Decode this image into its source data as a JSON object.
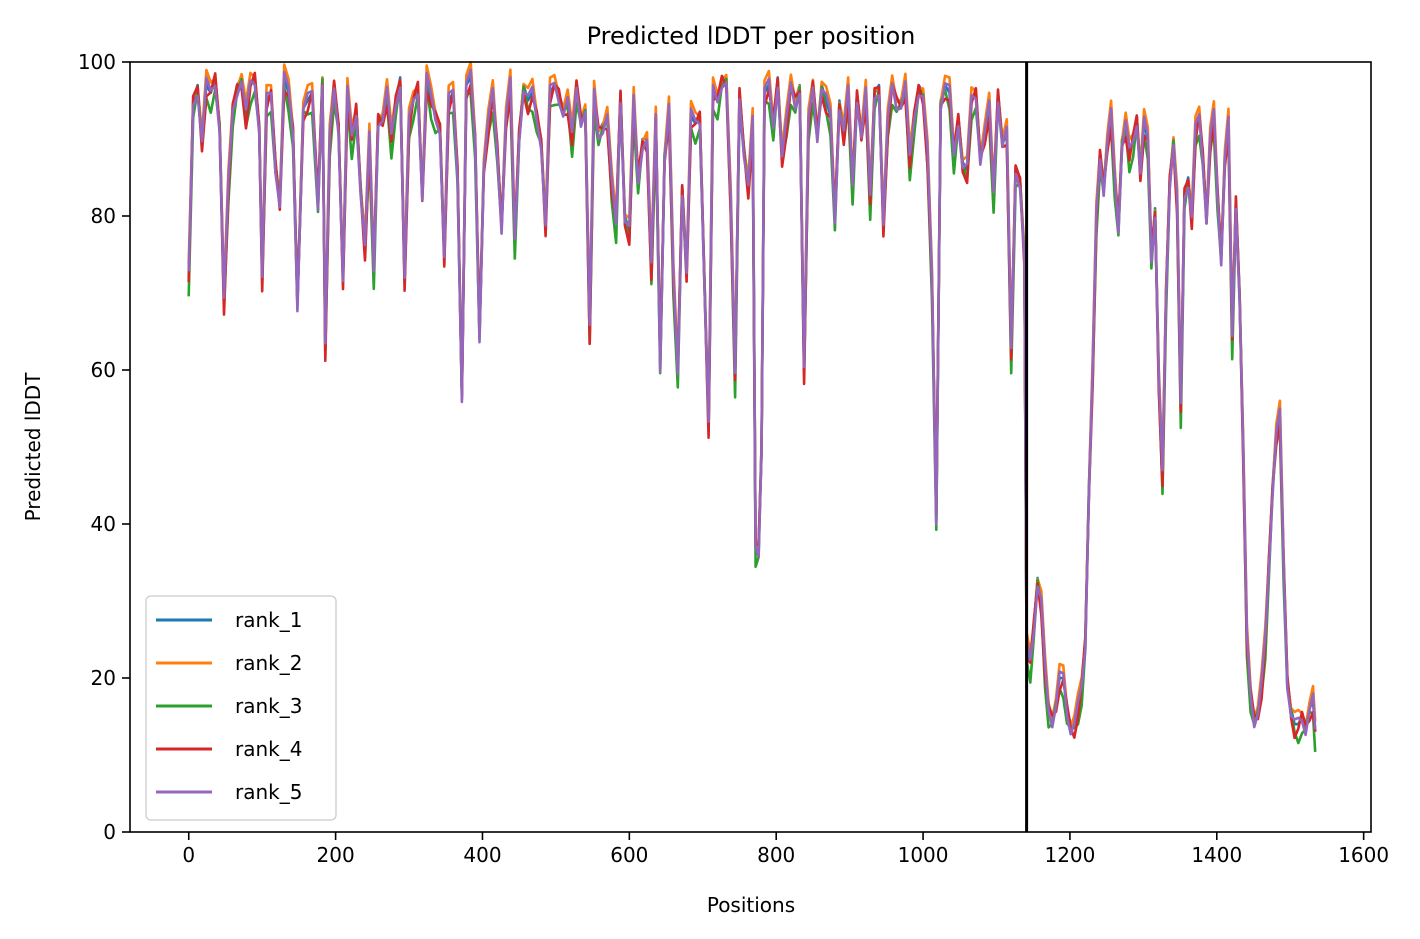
{
  "chart_data": {
    "type": "line",
    "title": "Predicted lDDT per position",
    "xlabel": "Positions",
    "ylabel": "Predicted lDDT",
    "xlim": [
      -80,
      1610
    ],
    "ylim": [
      0,
      100
    ],
    "xticks": [
      0,
      200,
      400,
      600,
      800,
      1000,
      1200,
      1400,
      1600
    ],
    "yticks": [
      0,
      20,
      40,
      60,
      80,
      100
    ],
    "grid": false,
    "legend_position": "lower-left",
    "vline": {
      "x": 1141,
      "color": "#000000"
    },
    "series": [
      {
        "name": "rank_1",
        "color": "#1f77b4",
        "offset": 0.0,
        "points": [
          [
            0,
            72
          ],
          [
            6,
            95
          ],
          [
            12,
            97
          ],
          [
            18,
            90
          ],
          [
            24,
            97
          ],
          [
            30,
            96
          ],
          [
            36,
            98
          ],
          [
            42,
            92
          ],
          [
            48,
            69
          ],
          [
            54,
            84
          ],
          [
            60,
            94
          ],
          [
            66,
            97
          ],
          [
            72,
            98
          ],
          [
            78,
            93
          ],
          [
            84,
            97
          ],
          [
            90,
            98
          ],
          [
            96,
            92
          ],
          [
            100,
            72
          ],
          [
            106,
            95
          ],
          [
            112,
            96
          ],
          [
            118,
            87
          ],
          [
            124,
            82
          ],
          [
            130,
            98
          ],
          [
            136,
            96
          ],
          [
            142,
            91
          ],
          [
            148,
            69
          ],
          [
            156,
            94
          ],
          [
            162,
            95
          ],
          [
            168,
            96
          ],
          [
            176,
            82
          ],
          [
            182,
            98
          ],
          [
            186,
            63
          ],
          [
            192,
            90
          ],
          [
            198,
            97
          ],
          [
            204,
            92
          ],
          [
            210,
            72
          ],
          [
            216,
            96
          ],
          [
            222,
            90
          ],
          [
            228,
            94
          ],
          [
            234,
            84
          ],
          [
            240,
            76
          ],
          [
            246,
            90
          ],
          [
            252,
            73
          ],
          [
            258,
            93
          ],
          [
            264,
            93
          ],
          [
            270,
            96
          ],
          [
            276,
            90
          ],
          [
            282,
            95
          ],
          [
            288,
            98
          ],
          [
            294,
            72
          ],
          [
            300,
            92
          ],
          [
            306,
            95
          ],
          [
            312,
            97
          ],
          [
            318,
            83
          ],
          [
            324,
            98
          ],
          [
            330,
            95
          ],
          [
            336,
            93
          ],
          [
            342,
            92
          ],
          [
            348,
            75
          ],
          [
            354,
            95
          ],
          [
            360,
            96
          ],
          [
            366,
            86
          ],
          [
            372,
            57
          ],
          [
            378,
            97
          ],
          [
            384,
            98
          ],
          [
            390,
            90
          ],
          [
            396,
            65
          ],
          [
            402,
            87
          ],
          [
            408,
            92
          ],
          [
            414,
            96
          ],
          [
            420,
            89
          ],
          [
            426,
            79
          ],
          [
            432,
            93
          ],
          [
            438,
            97
          ],
          [
            444,
            77
          ],
          [
            450,
            91
          ],
          [
            456,
            97
          ],
          [
            462,
            95
          ],
          [
            468,
            96
          ],
          [
            474,
            93
          ],
          [
            480,
            90
          ],
          [
            486,
            79
          ],
          [
            492,
            96
          ],
          [
            498,
            97
          ],
          [
            504,
            96
          ],
          [
            510,
            94
          ],
          [
            516,
            95
          ],
          [
            522,
            90
          ],
          [
            528,
            97
          ],
          [
            534,
            93
          ],
          [
            540,
            94
          ],
          [
            546,
            65
          ],
          [
            552,
            96
          ],
          [
            558,
            91
          ],
          [
            564,
            92
          ],
          [
            570,
            93
          ],
          [
            576,
            84
          ],
          [
            582,
            79
          ],
          [
            588,
            96
          ],
          [
            594,
            80
          ],
          [
            600,
            78
          ],
          [
            606,
            95
          ],
          [
            612,
            85
          ],
          [
            618,
            90
          ],
          [
            624,
            90
          ],
          [
            630,
            73
          ],
          [
            636,
            93
          ],
          [
            642,
            61
          ],
          [
            648,
            88
          ],
          [
            654,
            94
          ],
          [
            660,
            72
          ],
          [
            666,
            60
          ],
          [
            672,
            84
          ],
          [
            678,
            73
          ],
          [
            684,
            93
          ],
          [
            690,
            92
          ],
          [
            696,
            93
          ],
          [
            702,
            73
          ],
          [
            708,
            53
          ],
          [
            714,
            96
          ],
          [
            720,
            95
          ],
          [
            726,
            98
          ],
          [
            732,
            98
          ],
          [
            738,
            82
          ],
          [
            744,
            59
          ],
          [
            750,
            96
          ],
          [
            756,
            89
          ],
          [
            762,
            84
          ],
          [
            768,
            92
          ],
          [
            772,
            37
          ],
          [
            776,
            37
          ],
          [
            780,
            50
          ],
          [
            784,
            96
          ],
          [
            790,
            97
          ],
          [
            796,
            92
          ],
          [
            802,
            98
          ],
          [
            808,
            88
          ],
          [
            814,
            92
          ],
          [
            820,
            97
          ],
          [
            826,
            95
          ],
          [
            832,
            97
          ],
          [
            838,
            60
          ],
          [
            844,
            92
          ],
          [
            850,
            97
          ],
          [
            856,
            91
          ],
          [
            862,
            97
          ],
          [
            868,
            95
          ],
          [
            874,
            93
          ],
          [
            880,
            80
          ],
          [
            886,
            95
          ],
          [
            892,
            91
          ],
          [
            898,
            96
          ],
          [
            904,
            84
          ],
          [
            910,
            96
          ],
          [
            916,
            91
          ],
          [
            922,
            96
          ],
          [
            928,
            82
          ],
          [
            934,
            96
          ],
          [
            940,
            97
          ],
          [
            946,
            79
          ],
          [
            952,
            92
          ],
          [
            958,
            97
          ],
          [
            964,
            95
          ],
          [
            970,
            95
          ],
          [
            976,
            97
          ],
          [
            982,
            87
          ],
          [
            988,
            93
          ],
          [
            994,
            97
          ],
          [
            1000,
            96
          ],
          [
            1006,
            88
          ],
          [
            1012,
            72
          ],
          [
            1018,
            41
          ],
          [
            1024,
            95
          ],
          [
            1030,
            97
          ],
          [
            1036,
            96
          ],
          [
            1042,
            88
          ],
          [
            1048,
            93
          ],
          [
            1054,
            87
          ],
          [
            1060,
            86
          ],
          [
            1066,
            95
          ],
          [
            1072,
            96
          ],
          [
            1078,
            88
          ],
          [
            1084,
            91
          ],
          [
            1090,
            94
          ],
          [
            1096,
            83
          ],
          [
            1102,
            96
          ],
          [
            1108,
            90
          ],
          [
            1114,
            91
          ],
          [
            1120,
            62
          ],
          [
            1126,
            86
          ],
          [
            1132,
            85
          ],
          [
            1138,
            75
          ],
          [
            1141,
            24
          ],
          [
            1146,
            22
          ],
          [
            1151,
            27
          ],
          [
            1156,
            33
          ],
          [
            1161,
            30
          ],
          [
            1166,
            21
          ],
          [
            1171,
            16
          ],
          [
            1176,
            15
          ],
          [
            1181,
            17
          ],
          [
            1186,
            20
          ],
          [
            1191,
            20
          ],
          [
            1196,
            16
          ],
          [
            1201,
            14
          ],
          [
            1206,
            14
          ],
          [
            1211,
            16
          ],
          [
            1216,
            19
          ],
          [
            1221,
            25
          ],
          [
            1226,
            45
          ],
          [
            1231,
            60
          ],
          [
            1236,
            80
          ],
          [
            1241,
            88
          ],
          [
            1246,
            84
          ],
          [
            1251,
            90
          ],
          [
            1256,
            93
          ],
          [
            1261,
            85
          ],
          [
            1266,
            79
          ],
          [
            1271,
            90
          ],
          [
            1276,
            92
          ],
          [
            1281,
            88
          ],
          [
            1286,
            90
          ],
          [
            1291,
            93
          ],
          [
            1296,
            86
          ],
          [
            1301,
            92
          ],
          [
            1306,
            90
          ],
          [
            1311,
            75
          ],
          [
            1316,
            81
          ],
          [
            1321,
            59
          ],
          [
            1326,
            46
          ],
          [
            1331,
            70
          ],
          [
            1336,
            85
          ],
          [
            1341,
            90
          ],
          [
            1346,
            82
          ],
          [
            1351,
            55
          ],
          [
            1356,
            83
          ],
          [
            1361,
            85
          ],
          [
            1366,
            80
          ],
          [
            1371,
            91
          ],
          [
            1376,
            93
          ],
          [
            1381,
            88
          ],
          [
            1386,
            80
          ],
          [
            1391,
            90
          ],
          [
            1396,
            93
          ],
          [
            1401,
            83
          ],
          [
            1406,
            75
          ],
          [
            1411,
            88
          ],
          [
            1416,
            92
          ],
          [
            1421,
            64
          ],
          [
            1426,
            82
          ],
          [
            1431,
            70
          ],
          [
            1436,
            50
          ],
          [
            1441,
            25
          ],
          [
            1446,
            18
          ],
          [
            1451,
            15
          ],
          [
            1456,
            16
          ],
          [
            1461,
            19
          ],
          [
            1466,
            25
          ],
          [
            1471,
            35
          ],
          [
            1476,
            45
          ],
          [
            1481,
            52
          ],
          [
            1486,
            54
          ],
          [
            1491,
            35
          ],
          [
            1496,
            20
          ],
          [
            1501,
            16
          ],
          [
            1506,
            14
          ],
          [
            1511,
            14
          ],
          [
            1516,
            15
          ],
          [
            1521,
            14
          ],
          [
            1526,
            16
          ],
          [
            1531,
            17
          ],
          [
            1534,
            13
          ]
        ]
      },
      {
        "name": "rank_2",
        "color": "#ff7f0e",
        "offset": 0.8
      },
      {
        "name": "rank_3",
        "color": "#2ca02c",
        "offset": -1.4
      },
      {
        "name": "rank_4",
        "color": "#d62728",
        "offset": -0.6
      },
      {
        "name": "rank_5",
        "color": "#9467bd",
        "offset": -0.2
      }
    ]
  }
}
